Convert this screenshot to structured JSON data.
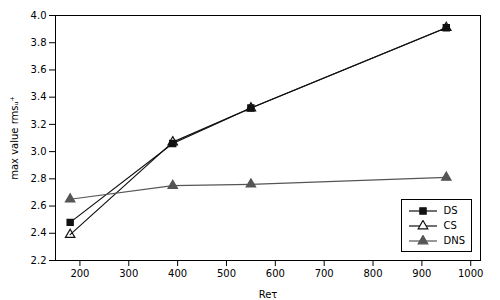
{
  "chart_data": {
    "type": "line",
    "x": [
      180,
      390,
      550,
      950
    ],
    "series": [
      {
        "name": "DS",
        "color": "#111111",
        "marker": "square",
        "values": [
          2.48,
          3.06,
          3.32,
          3.91
        ]
      },
      {
        "name": "CS",
        "color": "#111111",
        "marker": "triangle-open",
        "values": [
          2.39,
          3.07,
          3.32,
          3.91
        ]
      },
      {
        "name": "DNS",
        "color": "#555555",
        "marker": "triangle",
        "values": [
          2.65,
          2.75,
          2.76,
          2.81
        ]
      }
    ],
    "xlabel": "Reτ",
    "ylabel": "max value rmsᵤ⁺",
    "xlim": [
      150,
      1020
    ],
    "ylim": [
      2.2,
      4.0
    ],
    "xticks": [
      200,
      300,
      400,
      500,
      600,
      700,
      800,
      900,
      1000
    ],
    "yticks": [
      2.2,
      2.4,
      2.6,
      2.8,
      {
        "value": 3,
        "label": "3.0"
      },
      3.2,
      3.4,
      3.6,
      3.8,
      {
        "value": 4,
        "label": "4.0"
      }
    ],
    "grid": false,
    "legend": "lower right"
  }
}
